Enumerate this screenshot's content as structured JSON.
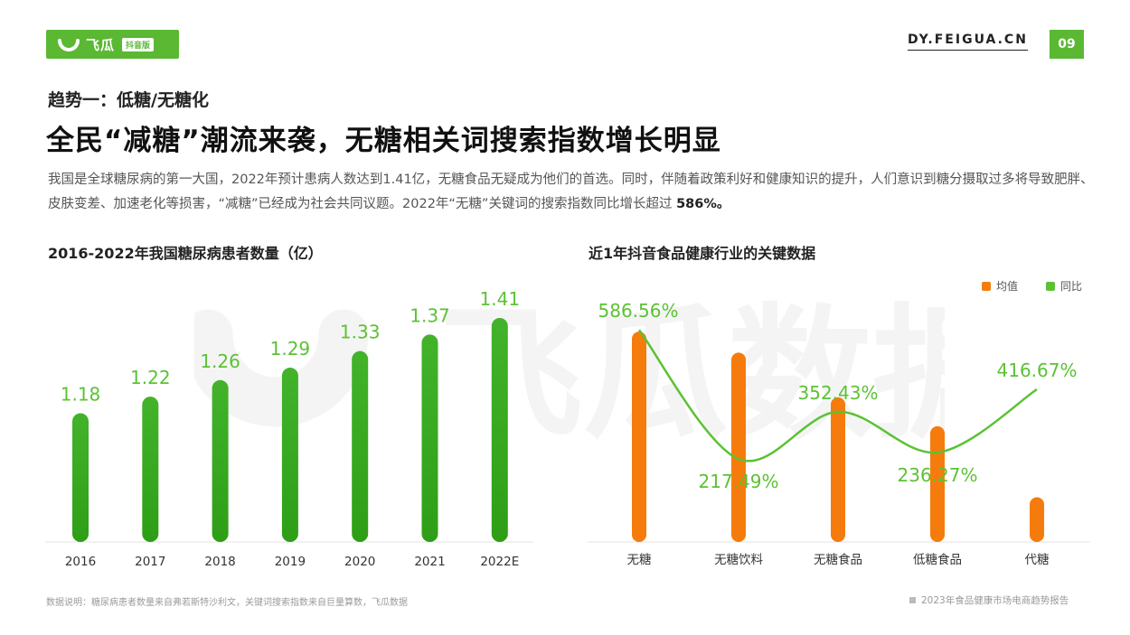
{
  "header": {
    "logo_text": "飞瓜",
    "logo_badge": "抖音版",
    "site": "DY.FEIGUA.CN",
    "page_number": "09",
    "accent_color": "#5ab833"
  },
  "kicker": "趋势一：低糖/无糖化",
  "headline": "全民“减糖”潮流来袭，无糖相关词搜索指数增长明显",
  "body_text": "我国是全球糖尿病的第一大国，2022年预计患病人数达到1.41亿，无糖食品无疑成为他们的首选。同时，伴随着政策利好和健康知识的提升，人们意识到糖分摄取过多将导致肥胖、皮肤变差、加速老化等损害，“减糖”已经成为社会共同议题。2022年“无糖”关键词的搜索指数同比增长超过",
  "body_highlight": "586%。",
  "watermark": "飞瓜数据",
  "chart_data": [
    {
      "type": "bar",
      "title": "2016-2022年我国糖尿病患者数量（亿）",
      "categories": [
        "2016",
        "2017",
        "2018",
        "2019",
        "2020",
        "2021",
        "2022E"
      ],
      "values": [
        1.18,
        1.22,
        1.26,
        1.29,
        1.33,
        1.37,
        1.41
      ],
      "data_labels": [
        "1.18",
        "1.22",
        "1.26",
        "1.29",
        "1.33",
        "1.37",
        "1.41"
      ],
      "colors": {
        "bar": "#2e9e16",
        "label": "#5cc234"
      }
    },
    {
      "type": "bar",
      "title": "近1年抖音食品健康行业的关键数据",
      "categories": [
        "无糖",
        "无糖饮料",
        "无糖食品",
        "低糖食品",
        "代糖"
      ],
      "series": [
        {
          "name": "均值",
          "type": "bar",
          "values": [
            0.8,
            0.72,
            0.55,
            0.44,
            0.17
          ],
          "unit": "relative",
          "color": "#f57c0c"
        },
        {
          "name": "同比",
          "type": "line",
          "values": [
            586.56,
            217.49,
            352.43,
            236.27,
            416.67
          ],
          "labels": [
            "586.56%",
            "217.49%",
            "352.43%",
            "236.27%",
            "416.67%"
          ],
          "color": "#5cc234"
        }
      ],
      "legend": "top-right"
    }
  ],
  "footer": {
    "source": "数据说明：糖尿病患者数量来自弗若斯特沙利文，关键词搜索指数来自巨量算数，飞瓜数据",
    "report": "2023年食品健康市场电商趋势报告"
  }
}
